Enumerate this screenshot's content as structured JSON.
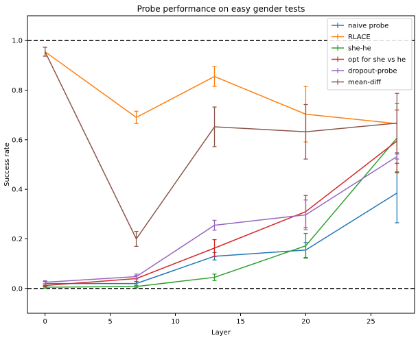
{
  "chart_data": {
    "type": "line",
    "title": "Probe performance on easy gender tests",
    "xlabel": "Layer",
    "ylabel": "Success rate",
    "xlim": [
      -1.35,
      28.35
    ],
    "ylim": [
      -0.1,
      1.1
    ],
    "x_ticks": [
      0,
      5,
      10,
      15,
      20,
      25
    ],
    "y_ticks": [
      0.0,
      0.2,
      0.4,
      0.6,
      0.8,
      1.0
    ],
    "y_tick_labels": [
      "0.0",
      "0.2",
      "0.4",
      "0.6",
      "0.8",
      "1.0"
    ],
    "reference_lines": [
      0.0,
      1.0
    ],
    "legend_position": "top-right",
    "grid": false,
    "x": [
      0,
      7,
      13,
      20,
      27
    ],
    "series": [
      {
        "name": "naive probe",
        "color": "#1f77b4",
        "values": [
          0.02,
          0.02,
          0.13,
          0.155,
          0.385
        ],
        "errors": [
          0.008,
          0.008,
          0.015,
          0.03,
          0.12
        ]
      },
      {
        "name": "RLACE",
        "color": "#ff7f0e",
        "values": [
          0.955,
          0.69,
          0.855,
          0.703,
          0.665
        ],
        "errors": [
          0.018,
          0.025,
          0.04,
          0.112,
          0.0
        ]
      },
      {
        "name": "she-he",
        "color": "#2ca02c",
        "values": [
          0.005,
          0.008,
          0.045,
          0.172,
          0.607
        ],
        "errors": [
          0.004,
          0.005,
          0.013,
          0.05,
          0.14
        ]
      },
      {
        "name": "opt for she vs he",
        "color": "#d62728",
        "values": [
          0.012,
          0.04,
          0.163,
          0.31,
          0.595
        ],
        "errors": [
          0.006,
          0.012,
          0.034,
          0.065,
          0.125
        ]
      },
      {
        "name": "dropout-probe",
        "color": "#9467bd",
        "values": [
          0.025,
          0.048,
          0.255,
          0.297,
          0.532
        ],
        "errors": [
          0.006,
          0.01,
          0.02,
          0.06,
          0.01
        ]
      },
      {
        "name": "mean-diff",
        "color": "#8c564b",
        "values": [
          0.955,
          0.2,
          0.652,
          0.632,
          0.667
        ],
        "errors": [
          0.018,
          0.03,
          0.08,
          0.11,
          0.12
        ]
      }
    ]
  }
}
